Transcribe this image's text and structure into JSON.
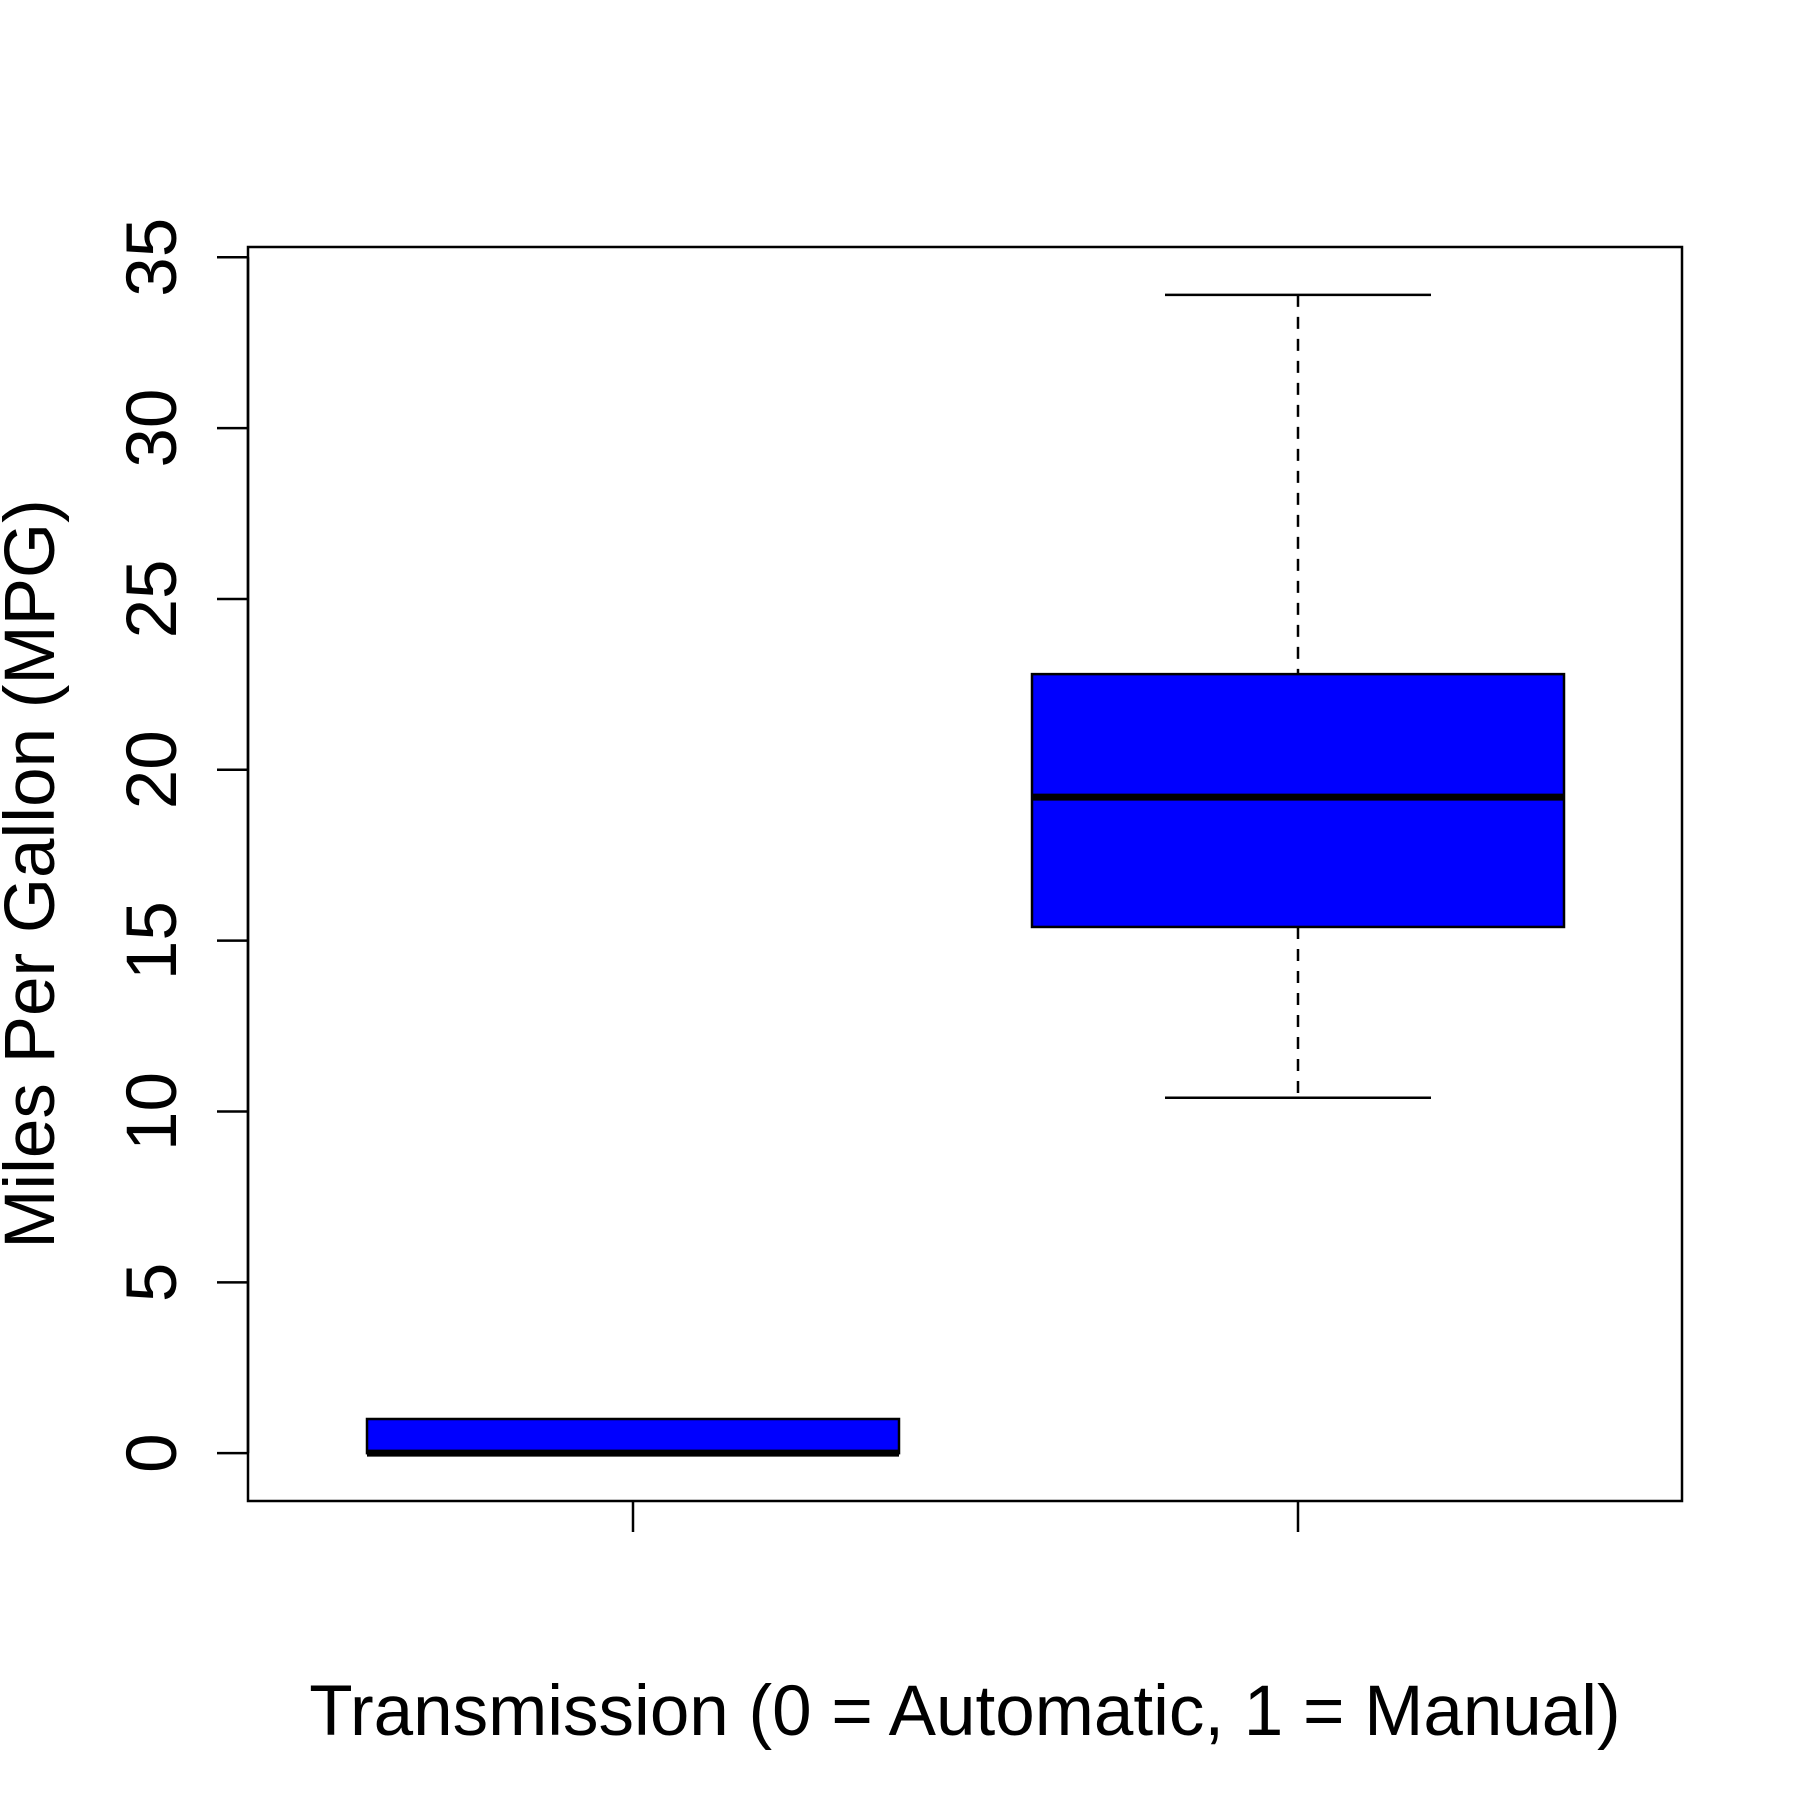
{
  "chart_data": {
    "type": "box",
    "title": "",
    "xlabel": "Transmission (0 = Automatic, 1 = Manual)",
    "ylabel": "Miles Per Gallon (MPG)",
    "ylim": [
      -1.4,
      35.3
    ],
    "yticks": [
      0,
      5,
      10,
      15,
      20,
      25,
      30,
      35
    ],
    "grid": false,
    "box_color": "#0000FF",
    "boxes": [
      {
        "position": 1,
        "min": 0,
        "q1": 0,
        "median": 0,
        "q3": 1,
        "max": 1
      },
      {
        "position": 2,
        "min": 10.4,
        "q1": 15.4,
        "median": 19.2,
        "q3": 22.8,
        "max": 33.9
      }
    ]
  }
}
